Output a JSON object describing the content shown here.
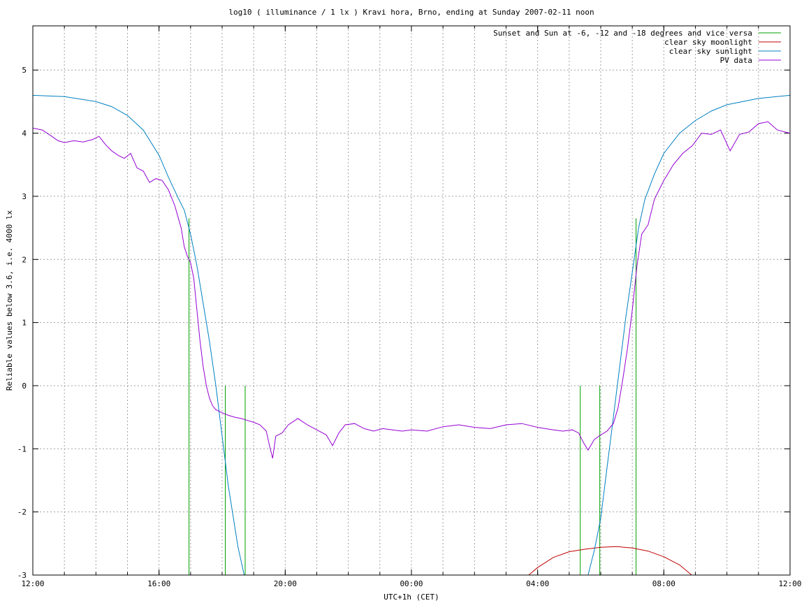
{
  "chart_data": {
    "type": "line",
    "title": "log10 ( illuminance / 1 lx ) Kravi hora, Brno, ending at Sunday 2007-02-11 noon",
    "xlabel": "UTC+1h (CET)",
    "ylabel": "Reliable values below 3.6, i.e. 4000 lx",
    "xlim": [
      -12,
      12
    ],
    "ylim": [
      -3,
      5.7
    ],
    "x_ticks": [
      -12,
      -8,
      -4,
      0,
      4,
      8,
      12
    ],
    "x_tick_labels": [
      "12:00",
      "16:00",
      "20:00",
      "00:00",
      "04:00",
      "08:00",
      "12:00"
    ],
    "x_minor_step": 1,
    "y_ticks": [
      -3,
      -2,
      -1,
      0,
      1,
      2,
      3,
      4,
      5
    ],
    "y_tick_labels": [
      "-3",
      "-2",
      "-1",
      "0",
      "1",
      "2",
      "3",
      "4",
      "5"
    ],
    "grid": true,
    "legend_position": "top-right",
    "series": [
      {
        "name": "Sunset and Sun at -6, -12 and -18 degrees and vice versa",
        "color": "#00a000",
        "style": "impulses",
        "x": [
          -7.05,
          -5.9,
          -5.27,
          5.35,
          5.97,
          7.12
        ],
        "y": [
          2.65,
          0.0,
          0.0,
          0.0,
          0.0,
          2.65
        ]
      },
      {
        "name": "clear sky moonlight",
        "color": "#c00000",
        "x": [
          3.6,
          4.0,
          4.5,
          5.0,
          5.5,
          6.0,
          6.5,
          7.0,
          7.5,
          8.0,
          8.5,
          9.0
        ],
        "y": [
          -3.05,
          -2.88,
          -2.72,
          -2.63,
          -2.59,
          -2.56,
          -2.55,
          -2.57,
          -2.62,
          -2.71,
          -2.84,
          -3.05
        ]
      },
      {
        "name": "clear sky sunlight",
        "color": "#0080c0",
        "x": [
          -12,
          -11,
          -10,
          -9.5,
          -9,
          -8.5,
          -8,
          -7.7,
          -7.4,
          -7.2,
          -7.0,
          -6.8,
          -6.6,
          -6.4,
          -6.2,
          -6.0,
          -5.8,
          -5.5,
          -5.3,
          5.6,
          5.8,
          6.0,
          6.2,
          6.4,
          6.6,
          6.8,
          7.0,
          7.2,
          7.4,
          7.7,
          8.0,
          8.5,
          9.0,
          9.5,
          10.0,
          11.0,
          12.0
        ],
        "y": [
          4.6,
          4.58,
          4.5,
          4.42,
          4.28,
          4.05,
          3.65,
          3.3,
          2.98,
          2.78,
          2.4,
          1.9,
          1.3,
          0.7,
          0.0,
          -0.8,
          -1.6,
          -2.55,
          -3.0,
          -3.0,
          -2.6,
          -2.1,
          -1.3,
          -0.5,
          0.3,
          1.1,
          1.8,
          2.5,
          2.95,
          3.35,
          3.68,
          4.0,
          4.2,
          4.35,
          4.45,
          4.55,
          4.6
        ]
      },
      {
        "name": "PV data",
        "color": "#9400d3",
        "x": [
          -12,
          -11.7,
          -11.4,
          -11.2,
          -11.0,
          -10.7,
          -10.4,
          -10.1,
          -9.9,
          -9.7,
          -9.5,
          -9.3,
          -9.1,
          -8.9,
          -8.7,
          -8.5,
          -8.3,
          -8.1,
          -7.9,
          -7.7,
          -7.5,
          -7.3,
          -7.2,
          -7.1,
          -7.0,
          -6.9,
          -6.8,
          -6.7,
          -6.6,
          -6.5,
          -6.4,
          -6.3,
          -6.2,
          -6.0,
          -5.8,
          -5.6,
          -5.4,
          -5.2,
          -5.0,
          -4.8,
          -4.6,
          -4.5,
          -4.4,
          -4.3,
          -4.1,
          -3.9,
          -3.6,
          -3.3,
          -3.0,
          -2.7,
          -2.5,
          -2.3,
          -2.1,
          -1.8,
          -1.5,
          -1.2,
          -0.9,
          -0.6,
          -0.3,
          0.0,
          0.5,
          1.0,
          1.5,
          2.0,
          2.5,
          3.0,
          3.5,
          4.0,
          4.5,
          4.8,
          5.1,
          5.3,
          5.45,
          5.6,
          5.8,
          6.0,
          6.2,
          6.4,
          6.55,
          6.7,
          6.85,
          7.0,
          7.15,
          7.3,
          7.5,
          7.7,
          8.0,
          8.3,
          8.6,
          8.9,
          9.2,
          9.5,
          9.8,
          10.1,
          10.4,
          10.7,
          11.0,
          11.3,
          11.6,
          12.0
        ],
        "y": [
          4.08,
          4.05,
          3.95,
          3.88,
          3.85,
          3.88,
          3.86,
          3.9,
          3.95,
          3.82,
          3.72,
          3.65,
          3.6,
          3.68,
          3.45,
          3.4,
          3.22,
          3.28,
          3.25,
          3.1,
          2.85,
          2.5,
          2.2,
          2.05,
          1.95,
          1.7,
          1.2,
          0.7,
          0.3,
          0.0,
          -0.2,
          -0.32,
          -0.38,
          -0.43,
          -0.47,
          -0.5,
          -0.52,
          -0.55,
          -0.58,
          -0.62,
          -0.72,
          -0.95,
          -1.15,
          -0.8,
          -0.75,
          -0.62,
          -0.52,
          -0.62,
          -0.7,
          -0.78,
          -0.95,
          -0.75,
          -0.62,
          -0.6,
          -0.68,
          -0.72,
          -0.68,
          -0.7,
          -0.72,
          -0.7,
          -0.72,
          -0.65,
          -0.62,
          -0.66,
          -0.68,
          -0.62,
          -0.6,
          -0.66,
          -0.7,
          -0.72,
          -0.7,
          -0.75,
          -0.9,
          -1.02,
          -0.85,
          -0.78,
          -0.72,
          -0.6,
          -0.35,
          0.1,
          0.6,
          1.2,
          1.9,
          2.4,
          2.55,
          2.95,
          3.25,
          3.5,
          3.68,
          3.8,
          4.0,
          3.98,
          4.05,
          3.72,
          3.98,
          4.02,
          4.15,
          4.18,
          4.05,
          4.0
        ]
      }
    ]
  }
}
